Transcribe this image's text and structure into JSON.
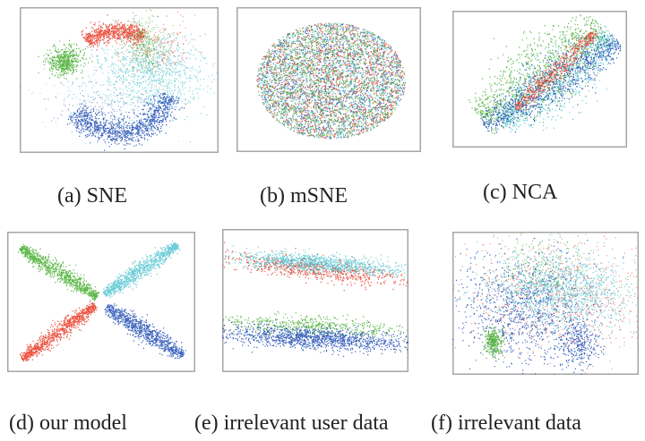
{
  "figure": {
    "panels": [
      {
        "id": "a",
        "caption": "(a) SNE",
        "pattern": "sne-ring"
      },
      {
        "id": "b",
        "caption": "(b) mSNE",
        "pattern": "uniform-disc"
      },
      {
        "id": "c",
        "caption": "(c) NCA",
        "pattern": "diagonal-bands"
      },
      {
        "id": "d",
        "caption": "(d) our model",
        "pattern": "x-cross"
      },
      {
        "id": "e",
        "caption": "(e) irrelevant user data",
        "pattern": "two-bands"
      },
      {
        "id": "f",
        "caption": "(f) irrelevant data",
        "pattern": "mixed-blob"
      }
    ],
    "colors": {
      "red": "#e8341f",
      "green": "#3faa28",
      "blue": "#1746b0",
      "cyan": "#4fc3cf"
    },
    "frame_color": "#a6a6a6"
  }
}
